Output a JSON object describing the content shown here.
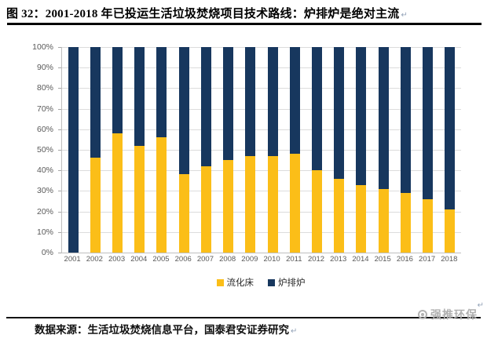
{
  "title": {
    "text": "图 32：2001-2018 年已投运生活垃圾焚烧项目技术路线：炉排炉是绝对主流",
    "paragraph_mark": "↵"
  },
  "chart_data": {
    "type": "bar",
    "stacked": true,
    "unit": "%",
    "title": "2001-2018 年已投运生活垃圾焚烧项目技术路线",
    "categories": [
      "2001",
      "2002",
      "2003",
      "2004",
      "2005",
      "2006",
      "2007",
      "2008",
      "2009",
      "2010",
      "2011",
      "2012",
      "2013",
      "2014",
      "2015",
      "2016",
      "2017",
      "2018"
    ],
    "series": [
      {
        "name": "流化床",
        "color": "#FBBE18",
        "values": [
          0,
          46,
          58,
          52,
          56,
          38,
          42,
          45,
          47,
          47,
          48,
          40,
          36,
          33,
          31,
          29,
          26,
          21
        ]
      },
      {
        "name": "炉排炉",
        "color": "#17375E",
        "values": [
          100,
          54,
          42,
          48,
          44,
          62,
          58,
          55,
          53,
          53,
          52,
          60,
          64,
          67,
          69,
          71,
          74,
          79
        ]
      }
    ],
    "xlabel": "",
    "ylabel": "",
    "ylim": [
      0,
      100
    ],
    "ytick_labels": [
      "0%",
      "10%",
      "20%",
      "30%",
      "40%",
      "50%",
      "60%",
      "70%",
      "80%",
      "90%",
      "100%"
    ],
    "grid": "horizontal",
    "legend_position": "bottom"
  },
  "footer": {
    "source_text": "数据来源：生活垃圾焚烧信息平台，国泰君安证券研究",
    "watermark": "强推环保",
    "paragraph_mark": "↵"
  },
  "colors": {
    "bar_fluidized_bed": "#FBBE18",
    "bar_grate_furnace": "#17375E",
    "gridline": "#dcdcdc",
    "axis_text": "#595959",
    "title_text": "#000000",
    "watermark": "#b0b0b0"
  }
}
